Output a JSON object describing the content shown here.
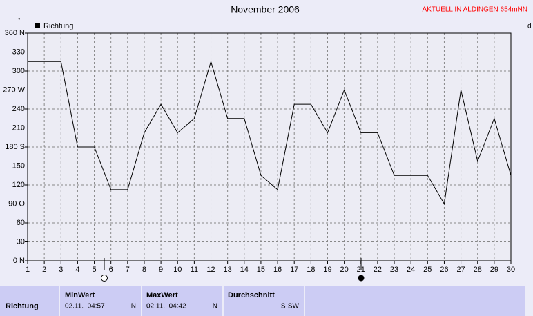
{
  "chart_data": {
    "type": "line",
    "title": "November 2006",
    "x": [
      1,
      2,
      3,
      4,
      5,
      6,
      7,
      8,
      9,
      10,
      11,
      12,
      13,
      14,
      15,
      16,
      17,
      18,
      19,
      20,
      21,
      22,
      23,
      24,
      25,
      26,
      27,
      28,
      29,
      30
    ],
    "series": [
      {
        "name": "Richtung",
        "color": "#000000",
        "values": [
          315,
          315,
          315,
          180,
          180,
          112.5,
          112.5,
          202.5,
          247.5,
          202.5,
          225,
          315,
          225,
          225,
          135,
          112.5,
          247.5,
          247.5,
          202.5,
          270,
          202.5,
          202.5,
          135,
          135,
          135,
          90,
          270,
          157.5,
          225,
          135
        ]
      }
    ],
    "xlim": [
      1,
      30
    ],
    "xticks": [
      1,
      2,
      3,
      4,
      5,
      6,
      7,
      8,
      9,
      10,
      11,
      12,
      13,
      14,
      15,
      16,
      17,
      18,
      19,
      20,
      21,
      22,
      23,
      24,
      25,
      26,
      27,
      28,
      29,
      30
    ],
    "ylim": [
      0,
      360
    ],
    "yticks": [
      {
        "value": 0,
        "label": "0 N"
      },
      30,
      60,
      {
        "value": 90,
        "label": "90 O"
      },
      120,
      150,
      {
        "value": 180,
        "label": "180 S"
      },
      210,
      240,
      {
        "value": 270,
        "label": "270 W"
      },
      300,
      330,
      {
        "value": 360,
        "label": "360 N"
      }
    ],
    "y_unit": "°",
    "grid": true
  },
  "header": {
    "notice": "AKTUELL IN ALDINGEN 654mNN",
    "cut_label": "d"
  },
  "table": {
    "headers": [
      "MinWert",
      "MaxWert",
      "Durchschnitt"
    ],
    "rows": [
      [
        "Richtung",
        "02.11.  04:57",
        "N",
        "02.11.  04:42",
        "N",
        "S-SW"
      ]
    ]
  }
}
